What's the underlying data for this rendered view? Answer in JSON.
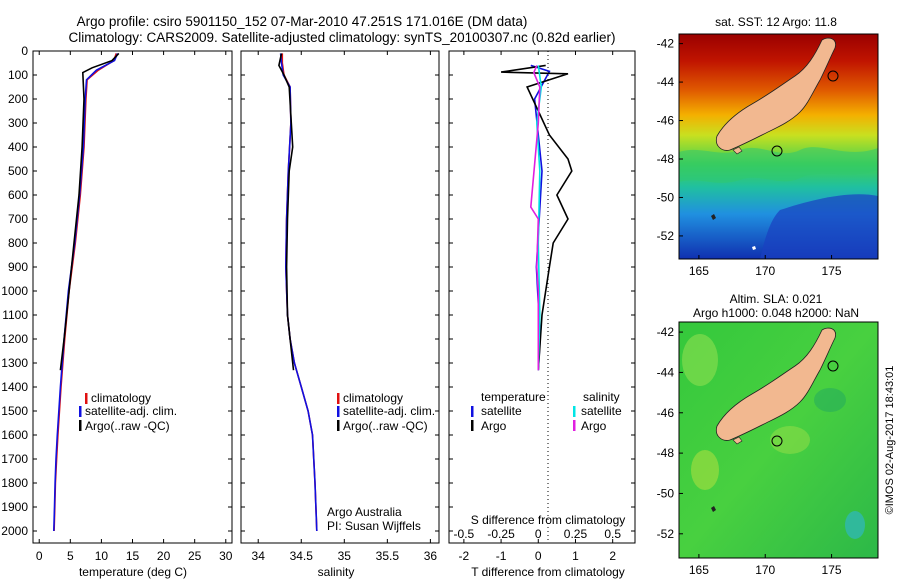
{
  "header": {
    "line1": "Argo profile: csiro 5901150_152 07-Mar-2010 47.251S 171.016E (DM data)",
    "line2": "Climatology: CARS2009. Satellite-adjusted climatology: synTS_20100307.nc (0.82d earlier)"
  },
  "colors": {
    "climatology": "#e01010",
    "satellite": "#1010e0",
    "argo": "#000000",
    "sat_salinity": "#00e5e5",
    "argo_salinity": "#e020e0"
  },
  "credits": {
    "institution": "Argo Australia",
    "pi": "PI: Susan Wijffels",
    "stamp": "©IMOS 02-Aug-2017 18:43:01"
  },
  "chart_data": [
    {
      "id": "temperature",
      "type": "line",
      "xlabel": "temperature (deg C)",
      "ylabel": "",
      "xlim": [
        -1,
        31
      ],
      "ylim": [
        2050,
        0
      ],
      "xticks": [
        "0",
        "5",
        "10",
        "15",
        "20",
        "25",
        "30"
      ],
      "yticks": [
        "0",
        "100",
        "200",
        "300",
        "400",
        "500",
        "600",
        "700",
        "800",
        "900",
        "1000",
        "1100",
        "1200",
        "1300",
        "1400",
        "1500",
        "1600",
        "1700",
        "1800",
        "1900",
        "2000"
      ],
      "legend": [
        "climatology",
        "satellite-adj. clim.",
        "Argo(..raw -QC)"
      ],
      "series": [
        {
          "name": "climatology",
          "color": "#e01010",
          "x": [
            12.4,
            12.0,
            9.5,
            7.7,
            7.5,
            7.2,
            6.6,
            5.8,
            4.8,
            4.1,
            3.5,
            3.0,
            2.8,
            2.6,
            2.5,
            2.4
          ],
          "y": [
            10,
            40,
            80,
            120,
            200,
            400,
            600,
            800,
            1000,
            1200,
            1400,
            1600,
            1700,
            1800,
            1900,
            2000
          ]
        },
        {
          "name": "satellite-adj. clim.",
          "color": "#1010e0",
          "x": [
            12.6,
            12.1,
            9.2,
            7.6,
            7.4,
            7.1,
            6.5,
            5.7,
            4.7,
            4.0,
            3.4,
            2.9,
            2.7,
            2.55,
            2.45,
            2.35
          ],
          "y": [
            10,
            40,
            80,
            120,
            200,
            400,
            600,
            800,
            1000,
            1200,
            1400,
            1600,
            1700,
            1800,
            1900,
            2000
          ]
        },
        {
          "name": "Argo(..raw -QC)",
          "color": "#000000",
          "x": [
            12.8,
            11.7,
            8.5,
            7.0,
            7.2,
            6.9,
            6.4,
            5.6,
            4.8,
            4.0,
            3.4
          ],
          "y": [
            10,
            40,
            70,
            90,
            200,
            400,
            600,
            800,
            1000,
            1200,
            1330
          ]
        }
      ]
    },
    {
      "id": "salinity",
      "type": "line",
      "xlabel": "salinity",
      "ylabel": "",
      "xlim": [
        33.8,
        36.1
      ],
      "ylim": [
        2050,
        0
      ],
      "xticks": [
        "34",
        "34.5",
        "35",
        "35.5",
        "36"
      ],
      "legend": [
        "climatology",
        "satellite-adj. clim.",
        "Argo(..raw -QC)"
      ],
      "series": [
        {
          "name": "climatology",
          "color": "#e01010",
          "x": [
            34.28,
            34.28,
            34.3,
            34.37,
            34.38,
            34.35,
            34.33,
            34.32,
            34.34,
            34.37,
            34.42,
            34.5,
            34.58,
            34.63,
            34.66,
            34.68
          ],
          "y": [
            10,
            50,
            100,
            150,
            300,
            500,
            700,
            900,
            1100,
            1200,
            1300,
            1400,
            1500,
            1600,
            1800,
            2000
          ]
        },
        {
          "name": "satellite-adj. clim.",
          "color": "#1010e0",
          "x": [
            34.26,
            34.27,
            34.29,
            34.37,
            34.38,
            34.35,
            34.33,
            34.32,
            34.34,
            34.37,
            34.42,
            34.5,
            34.58,
            34.63,
            34.66,
            34.68
          ],
          "y": [
            10,
            50,
            100,
            150,
            300,
            500,
            700,
            900,
            1100,
            1200,
            1300,
            1400,
            1500,
            1600,
            1800,
            2000
          ]
        },
        {
          "name": "Argo(..raw -QC)",
          "color": "#000000",
          "x": [
            34.27,
            34.24,
            34.3,
            34.36,
            34.4,
            34.36,
            34.34,
            34.33,
            34.34,
            34.37,
            34.41
          ],
          "y": [
            10,
            60,
            100,
            150,
            400,
            500,
            700,
            900,
            1100,
            1200,
            1330
          ]
        }
      ]
    },
    {
      "id": "differences",
      "type": "line",
      "xlabel": "T difference from climatology",
      "xlabel_top": "S difference from climatology",
      "xlim": [
        -2.4,
        2.6
      ],
      "ylim": [
        2050,
        0
      ],
      "xticks": [
        "-2",
        "-1",
        "0",
        "1",
        "2"
      ],
      "xticks_top": [
        "-0.5",
        "-0.25",
        "0",
        "0.25",
        "0.5"
      ],
      "legend_header": [
        "temperature",
        "salinity"
      ],
      "legend": [
        "satellite",
        "Argo",
        "satellite",
        "Argo"
      ],
      "series": [
        {
          "name": "T satellite",
          "color": "#1010e0",
          "x": [
            -0.2,
            0.3,
            -0.1,
            0.1,
            -0.05,
            0.05,
            0.0
          ],
          "y": [
            60,
            85,
            200,
            500,
            900,
            1200,
            1330
          ]
        },
        {
          "name": "T Argo",
          "color": "#000000",
          "x": [
            0.2,
            -1.0,
            0.8,
            -0.3,
            0.0,
            0.3,
            0.8,
            0.9,
            0.5,
            0.8,
            0.4,
            0.3,
            0.1,
            0.0
          ],
          "y": [
            60,
            88,
            95,
            150,
            250,
            350,
            450,
            500,
            600,
            700,
            800,
            900,
            1100,
            1330
          ]
        },
        {
          "name": "S satellite",
          "color": "#00e5e5",
          "x": [
            0.0,
            0.02,
            -0.01,
            0.01,
            0.0,
            0.01,
            0.0
          ],
          "y": [
            60,
            150,
            300,
            500,
            800,
            1100,
            1330
          ]
        },
        {
          "name": "S Argo",
          "color": "#e020e0",
          "x": [
            -0.01,
            -0.03,
            0.01,
            0.0,
            -0.05,
            0.0,
            -0.01,
            0.0,
            0.0
          ],
          "y": [
            60,
            90,
            150,
            300,
            650,
            700,
            900,
            1000,
            1330
          ]
        }
      ]
    },
    {
      "id": "sst-map",
      "type": "heatmap",
      "title": "sat. SST: 12 Argo: 11.8",
      "xticks": [
        "165",
        "170",
        "175"
      ],
      "yticks": [
        "-42",
        "-44",
        "-46",
        "-48",
        "-50",
        "-52"
      ],
      "xlim": [
        163.5,
        178.5
      ],
      "ylim": [
        -53.2,
        -41.5
      ],
      "argo_position": [
        171.016,
        -47.251
      ]
    },
    {
      "id": "sla-map",
      "type": "heatmap",
      "title": "Altim. SLA: 0.021",
      "subtitle": "Argo h1000: 0.048 h2000: NaN",
      "xticks": [
        "165",
        "170",
        "175"
      ],
      "yticks": [
        "-42",
        "-44",
        "-46",
        "-48",
        "-50",
        "-52"
      ],
      "xlim": [
        163.5,
        178.5
      ],
      "ylim": [
        -53.2,
        -41.5
      ],
      "argo_position": [
        171.016,
        -47.251
      ]
    }
  ]
}
